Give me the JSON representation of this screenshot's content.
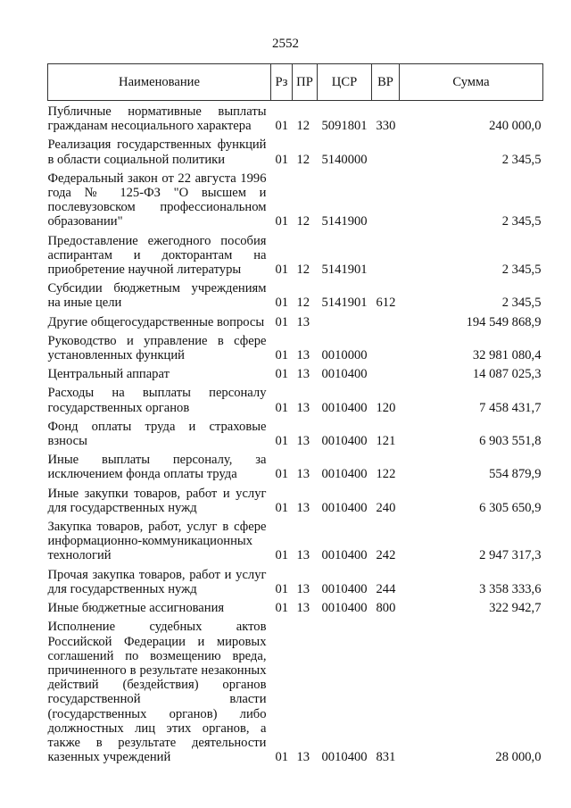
{
  "page_number": "2552",
  "headers": [
    "Наименование",
    "Рз",
    "ПР",
    "ЦСР",
    "ВР",
    "Сумма"
  ],
  "rows": [
    {
      "name": "Публичные нормативные выплаты гражданам несоциального характера",
      "rz": "01",
      "pr": "12",
      "csr": "5091801",
      "vr": "330",
      "sum": "240 000,0"
    },
    {
      "name": "Реализация государственных функций в области социальной политики",
      "rz": "01",
      "pr": "12",
      "csr": "5140000",
      "vr": "",
      "sum": "2 345,5"
    },
    {
      "name": "Федеральный закон от 22 августа 1996 года № 125-ФЗ \"О высшем и послевузовском профессиональном образовании\"",
      "rz": "01",
      "pr": "12",
      "csr": "5141900",
      "vr": "",
      "sum": "2 345,5"
    },
    {
      "name": "Предоставление ежегодного пособия аспирантам и докторантам на приобретение научной литературы",
      "rz": "01",
      "pr": "12",
      "csr": "5141901",
      "vr": "",
      "sum": "2 345,5"
    },
    {
      "name": "Субсидии бюджетным учреждениям на иные цели",
      "rz": "01",
      "pr": "12",
      "csr": "5141901",
      "vr": "612",
      "sum": "2 345,5"
    },
    {
      "name": "Другие общегосударственные вопросы",
      "rz": "01",
      "pr": "13",
      "csr": "",
      "vr": "",
      "sum": "194 549 868,9"
    },
    {
      "name": "Руководство и управление в сфере установленных функций",
      "rz": "01",
      "pr": "13",
      "csr": "0010000",
      "vr": "",
      "sum": "32 981 080,4"
    },
    {
      "name": "Центральный аппарат",
      "rz": "01",
      "pr": "13",
      "csr": "0010400",
      "vr": "",
      "sum": "14 087 025,3"
    },
    {
      "name": "Расходы на выплаты персоналу государственных органов",
      "rz": "01",
      "pr": "13",
      "csr": "0010400",
      "vr": "120",
      "sum": "7 458 431,7"
    },
    {
      "name": "Фонд оплаты труда и страховые взносы",
      "rz": "01",
      "pr": "13",
      "csr": "0010400",
      "vr": "121",
      "sum": "6 903 551,8"
    },
    {
      "name": "Иные выплаты персоналу, за исключением фонда оплаты труда",
      "rz": "01",
      "pr": "13",
      "csr": "0010400",
      "vr": "122",
      "sum": "554 879,9"
    },
    {
      "name": "Иные закупки товаров, работ и услуг для государственных нужд",
      "rz": "01",
      "pr": "13",
      "csr": "0010400",
      "vr": "240",
      "sum": "6 305 650,9"
    },
    {
      "name": "Закупка товаров, работ, услуг в сфере информационно-коммуникационных технологий",
      "rz": "01",
      "pr": "13",
      "csr": "0010400",
      "vr": "242",
      "sum": "2 947 317,3"
    },
    {
      "name": "Прочая закупка товаров, работ и услуг для государственных нужд",
      "rz": "01",
      "pr": "13",
      "csr": "0010400",
      "vr": "244",
      "sum": "3 358 333,6"
    },
    {
      "name": "Иные бюджетные ассигнования",
      "rz": "01",
      "pr": "13",
      "csr": "0010400",
      "vr": "800",
      "sum": "322 942,7"
    },
    {
      "name": "Исполнение судебных актов Российской Федерации и мировых соглашений по возмещению вреда, причиненного в результате незаконных действий (бездействия) органов государственной власти (государственных органов) либо должностных лиц этих органов, а также в результате деятельности казенных учреждений",
      "rz": "01",
      "pr": "13",
      "csr": "0010400",
      "vr": "831",
      "sum": "28 000,0"
    }
  ]
}
